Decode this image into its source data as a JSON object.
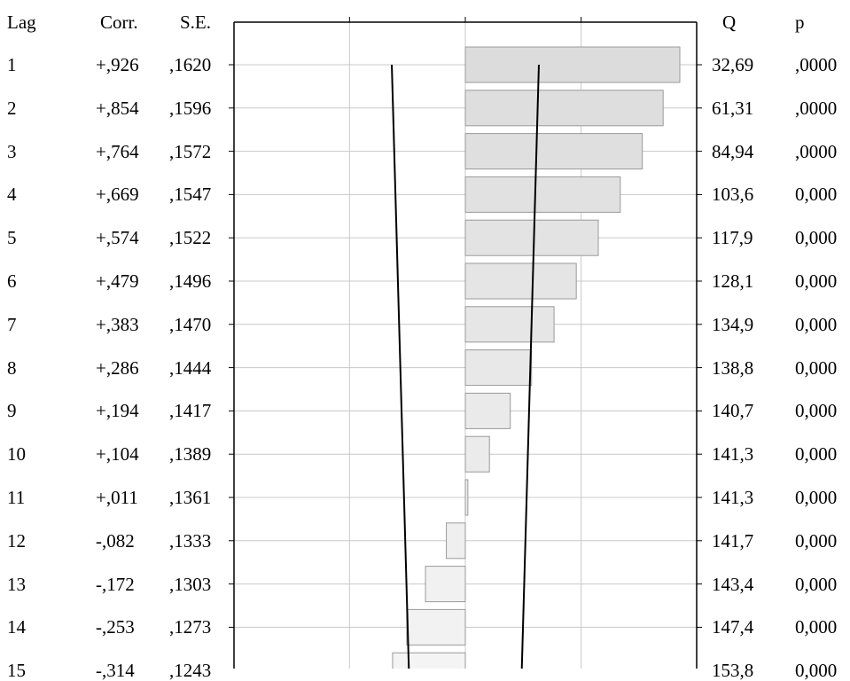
{
  "headers": {
    "lag": "Lag",
    "corr": "Corr.",
    "se": "S.E.",
    "q": "Q",
    "p": "p"
  },
  "rows": [
    {
      "lag": "1",
      "corr": "+,926",
      "se": ",1620",
      "q": "32,69",
      "p": ",0000"
    },
    {
      "lag": "2",
      "corr": "+,854",
      "se": ",1596",
      "q": "61,31",
      "p": ",0000"
    },
    {
      "lag": "3",
      "corr": "+,764",
      "se": ",1572",
      "q": "84,94",
      "p": ",0000"
    },
    {
      "lag": "4",
      "corr": "+,669",
      "se": ",1547",
      "q": "103,6",
      "p": "0,000"
    },
    {
      "lag": "5",
      "corr": "+,574",
      "se": ",1522",
      "q": "117,9",
      "p": "0,000"
    },
    {
      "lag": "6",
      "corr": "+,479",
      "se": ",1496",
      "q": "128,1",
      "p": "0,000"
    },
    {
      "lag": "7",
      "corr": "+,383",
      "se": ",1470",
      "q": "134,9",
      "p": "0,000"
    },
    {
      "lag": "8",
      "corr": "+,286",
      "se": ",1444",
      "q": "138,8",
      "p": "0,000"
    },
    {
      "lag": "9",
      "corr": "+,194",
      "se": ",1417",
      "q": "140,7",
      "p": "0,000"
    },
    {
      "lag": "10",
      "corr": "+,104",
      "se": ",1389",
      "q": "141,3",
      "p": "0,000"
    },
    {
      "lag": "11",
      "corr": "+,011",
      "se": ",1361",
      "q": "141,3",
      "p": "0,000"
    },
    {
      "lag": "12",
      "corr": "-,082",
      "se": ",1333",
      "q": "141,7",
      "p": "0,000"
    },
    {
      "lag": "13",
      "corr": "-,172",
      "se": ",1303",
      "q": "143,4",
      "p": "0,000"
    },
    {
      "lag": "14",
      "corr": "-,253",
      "se": ",1273",
      "q": "147,4",
      "p": "0,000"
    },
    {
      "lag": "15",
      "corr": "-,314",
      "se": ",1243",
      "q": "153,8",
      "p": "0,000"
    }
  ],
  "chart_data": {
    "type": "bar",
    "orientation": "horizontal",
    "categories": [
      1,
      2,
      3,
      4,
      5,
      6,
      7,
      8,
      9,
      10,
      11,
      12,
      13,
      14,
      15
    ],
    "values": [
      0.926,
      0.854,
      0.764,
      0.669,
      0.574,
      0.479,
      0.383,
      0.286,
      0.194,
      0.104,
      0.011,
      -0.082,
      -0.172,
      -0.253,
      -0.314
    ],
    "std_errors": [
      0.162,
      0.1596,
      0.1572,
      0.1547,
      0.1522,
      0.1496,
      0.147,
      0.1444,
      0.1417,
      0.1389,
      0.1361,
      0.1333,
      0.1303,
      0.1273,
      0.1243
    ],
    "q_stat": [
      32.69,
      61.31,
      84.94,
      103.6,
      117.9,
      128.1,
      134.9,
      138.8,
      140.7,
      141.3,
      141.3,
      141.7,
      143.4,
      147.4,
      153.8
    ],
    "p_value": [
      0,
      0,
      0,
      0,
      0,
      0,
      0,
      0,
      0,
      0,
      0,
      0,
      0,
      0,
      0
    ],
    "confidence_band": {
      "lag1": 0.3175,
      "lag15": 0.2436
    },
    "xlim": [
      -1,
      1
    ],
    "grid": true,
    "title": "",
    "xlabel": "",
    "ylabel": "",
    "colors": {
      "bar_high": "#dcdcdc",
      "bar_low": "#f4f4f4",
      "bar_stroke": "#9a9a9a",
      "band": "#000000",
      "grid": "#c8c8c8"
    }
  }
}
